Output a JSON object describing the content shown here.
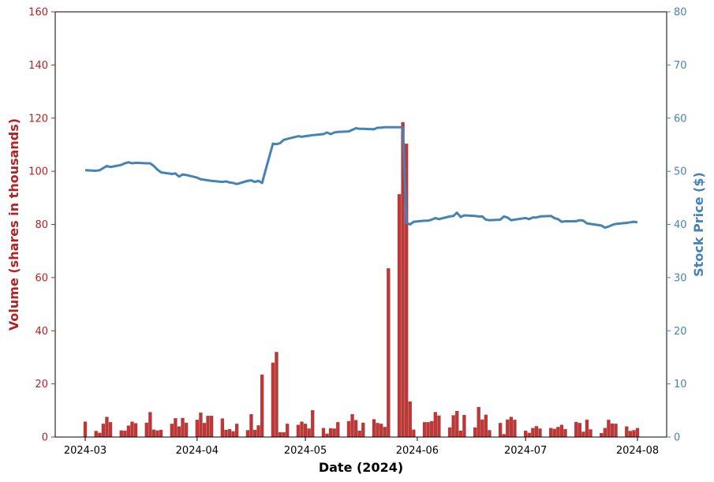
{
  "chart_data": {
    "type": "bar+line",
    "title": "",
    "xlabel": "Date (2024)",
    "ylabel_left": "Volume (shares in thousands)",
    "ylabel_right": "Stock Price ($)",
    "ylim_left": [
      0,
      160
    ],
    "ylim_right": [
      0,
      80
    ],
    "yticks_left": [
      "0",
      "20",
      "40",
      "60",
      "80",
      "100",
      "120",
      "140",
      "160"
    ],
    "yticks_right": [
      "0",
      "10",
      "20",
      "30",
      "40",
      "50",
      "60",
      "70",
      "80"
    ],
    "xticks": [
      "2024-03",
      "2024-04",
      "2024-05",
      "2024-06",
      "2024-07",
      "2024-08"
    ],
    "grid": false,
    "colors": {
      "volume": "#b22222",
      "price": "#4682b4"
    },
    "volume": {
      "dates": [
        "2024-03-01",
        "2024-03-04",
        "2024-03-05",
        "2024-03-06",
        "2024-03-07",
        "2024-03-08",
        "2024-03-11",
        "2024-03-12",
        "2024-03-13",
        "2024-03-14",
        "2024-03-15",
        "2024-03-18",
        "2024-03-19",
        "2024-03-20",
        "2024-03-21",
        "2024-03-22",
        "2024-03-25",
        "2024-03-26",
        "2024-03-27",
        "2024-03-28",
        "2024-03-29",
        "2024-04-01",
        "2024-04-02",
        "2024-04-03",
        "2024-04-04",
        "2024-04-05",
        "2024-04-08",
        "2024-04-09",
        "2024-04-10",
        "2024-04-11",
        "2024-04-12",
        "2024-04-15",
        "2024-04-16",
        "2024-04-17",
        "2024-04-18",
        "2024-04-19",
        "2024-04-22",
        "2024-04-23",
        "2024-04-24",
        "2024-04-25",
        "2024-04-26",
        "2024-04-29",
        "2024-04-30",
        "2024-05-01",
        "2024-05-02",
        "2024-05-03",
        "2024-05-06",
        "2024-05-07",
        "2024-05-08",
        "2024-05-09",
        "2024-05-10",
        "2024-05-13",
        "2024-05-14",
        "2024-05-15",
        "2024-05-16",
        "2024-05-17",
        "2024-05-20",
        "2024-05-21",
        "2024-05-22",
        "2024-05-23",
        "2024-05-24",
        "2024-05-27",
        "2024-05-28",
        "2024-05-29",
        "2024-05-30",
        "2024-05-31",
        "2024-06-03",
        "2024-06-04",
        "2024-06-05",
        "2024-06-06",
        "2024-06-07",
        "2024-06-10",
        "2024-06-11",
        "2024-06-12",
        "2024-06-13",
        "2024-06-14",
        "2024-06-17",
        "2024-06-18",
        "2024-06-19",
        "2024-06-20",
        "2024-06-21",
        "2024-06-24",
        "2024-06-25",
        "2024-06-26",
        "2024-06-27",
        "2024-06-28",
        "2024-07-01",
        "2024-07-02",
        "2024-07-03",
        "2024-07-04",
        "2024-07-05",
        "2024-07-08",
        "2024-07-09",
        "2024-07-10",
        "2024-07-11",
        "2024-07-12",
        "2024-07-15",
        "2024-07-16",
        "2024-07-17",
        "2024-07-18",
        "2024-07-19",
        "2024-07-22",
        "2024-07-23",
        "2024-07-24",
        "2024-07-25",
        "2024-07-26",
        "2024-07-29",
        "2024-07-30",
        "2024-07-31",
        "2024-08-01"
      ],
      "values": [
        5.8,
        2.3,
        1.6,
        5.0,
        7.6,
        5.6,
        2.5,
        2.4,
        4.3,
        5.8,
        5.2,
        5.4,
        9.4,
        2.8,
        2.5,
        2.7,
        5.0,
        7.1,
        4.0,
        7.2,
        5.4,
        6.5,
        9.2,
        5.3,
        8.0,
        8.0,
        7.0,
        2.7,
        3.0,
        2.2,
        5.0,
        2.6,
        8.6,
        2.7,
        4.4,
        23.5,
        28.0,
        32.0,
        1.8,
        1.8,
        5.0,
        4.6,
        5.8,
        5.0,
        3.2,
        10.1,
        3.4,
        1.3,
        3.3,
        3.2,
        5.6,
        6.0,
        8.6,
        6.4,
        2.4,
        5.4,
        6.7,
        5.3,
        5.0,
        3.8,
        63.5,
        91.4,
        118.5,
        110.4,
        13.4,
        2.8,
        5.6,
        5.6,
        6.0,
        9.4,
        8.1,
        3.6,
        8.2,
        9.8,
        2.4,
        8.3,
        3.6,
        11.3,
        6.6,
        8.4,
        2.6,
        5.3,
        1.1,
        6.6,
        7.6,
        6.5,
        2.4,
        1.6,
        3.4,
        4.1,
        3.2,
        3.4,
        3.1,
        3.8,
        4.6,
        3.0,
        5.7,
        5.3,
        2.0,
        6.5,
        2.9,
        1.5,
        3.4,
        6.5,
        5.1,
        5.0,
        4.0,
        2.3,
        2.6,
        3.4
      ]
    },
    "price": {
      "dates": [
        "2024-03-01",
        "2024-03-04",
        "2024-03-05",
        "2024-03-06",
        "2024-03-07",
        "2024-03-08",
        "2024-03-11",
        "2024-03-12",
        "2024-03-13",
        "2024-03-14",
        "2024-03-15",
        "2024-03-18",
        "2024-03-19",
        "2024-03-20",
        "2024-03-21",
        "2024-03-22",
        "2024-03-25",
        "2024-03-26",
        "2024-03-27",
        "2024-03-28",
        "2024-03-29",
        "2024-04-01",
        "2024-04-02",
        "2024-04-03",
        "2024-04-04",
        "2024-04-05",
        "2024-04-08",
        "2024-04-09",
        "2024-04-10",
        "2024-04-11",
        "2024-04-12",
        "2024-04-15",
        "2024-04-16",
        "2024-04-17",
        "2024-04-18",
        "2024-04-19",
        "2024-04-22",
        "2024-04-23",
        "2024-04-24",
        "2024-04-25",
        "2024-04-26",
        "2024-04-29",
        "2024-04-30",
        "2024-05-01",
        "2024-05-02",
        "2024-05-03",
        "2024-05-06",
        "2024-05-07",
        "2024-05-08",
        "2024-05-09",
        "2024-05-10",
        "2024-05-13",
        "2024-05-14",
        "2024-05-15",
        "2024-05-16",
        "2024-05-17",
        "2024-05-20",
        "2024-05-21",
        "2024-05-22",
        "2024-05-23",
        "2024-05-24",
        "2024-05-27",
        "2024-05-28",
        "2024-05-29",
        "2024-05-30",
        "2024-05-31",
        "2024-06-03",
        "2024-06-04",
        "2024-06-05",
        "2024-06-06",
        "2024-06-07",
        "2024-06-10",
        "2024-06-11",
        "2024-06-12",
        "2024-06-13",
        "2024-06-14",
        "2024-06-17",
        "2024-06-18",
        "2024-06-19",
        "2024-06-20",
        "2024-06-21",
        "2024-06-24",
        "2024-06-25",
        "2024-06-26",
        "2024-06-27",
        "2024-06-28",
        "2024-07-01",
        "2024-07-02",
        "2024-07-03",
        "2024-07-04",
        "2024-07-05",
        "2024-07-08",
        "2024-07-09",
        "2024-07-10",
        "2024-07-11",
        "2024-07-12",
        "2024-07-15",
        "2024-07-16",
        "2024-07-17",
        "2024-07-18",
        "2024-07-19",
        "2024-07-22",
        "2024-07-23",
        "2024-07-24",
        "2024-07-25",
        "2024-07-26",
        "2024-07-29",
        "2024-07-30",
        "2024-07-31",
        "2024-08-01"
      ],
      "values": [
        50.2,
        50.1,
        50.2,
        50.6,
        51.0,
        50.8,
        51.2,
        51.5,
        51.7,
        51.5,
        51.6,
        51.5,
        51.5,
        51.0,
        50.3,
        49.8,
        49.5,
        49.6,
        49.0,
        49.4,
        49.3,
        48.8,
        48.5,
        48.4,
        48.3,
        48.2,
        48.0,
        48.1,
        47.9,
        47.8,
        47.6,
        48.2,
        48.3,
        48.0,
        48.2,
        47.8,
        55.2,
        55.1,
        55.3,
        55.9,
        56.1,
        56.6,
        56.5,
        56.6,
        56.7,
        56.8,
        57.0,
        57.3,
        57.0,
        57.3,
        57.4,
        57.5,
        57.8,
        58.1,
        58.0,
        58.0,
        57.9,
        58.2,
        58.2,
        58.3,
        58.3,
        58.3,
        58.2,
        40.3,
        40.0,
        40.5,
        40.7,
        40.7,
        40.9,
        41.2,
        41.0,
        41.5,
        41.6,
        42.2,
        41.4,
        41.7,
        41.6,
        41.5,
        41.5,
        40.9,
        40.8,
        40.9,
        41.5,
        41.3,
        40.8,
        40.9,
        41.2,
        41.0,
        41.3,
        41.3,
        41.5,
        41.6,
        41.2,
        41.0,
        40.5,
        40.6,
        40.6,
        40.8,
        40.7,
        40.2,
        40.1,
        39.8,
        39.4,
        39.6,
        39.9,
        40.1,
        40.3,
        40.4,
        40.5,
        40.4
      ]
    }
  }
}
